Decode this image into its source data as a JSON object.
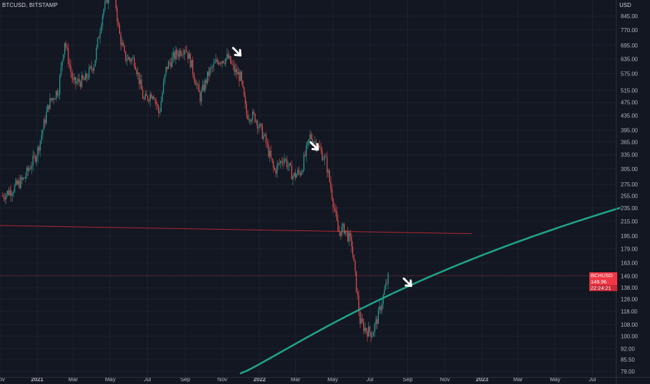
{
  "header": {
    "symbol": "BTCUSD, BITSTAMP",
    "currency": "USD"
  },
  "price_tag": {
    "label": "BCHUSD",
    "value": "149.96",
    "countdown": "22:24:21"
  },
  "colors": {
    "background": "#131722",
    "up": "#26a69a",
    "down": "#ef5350",
    "trendline": "#1fa38a",
    "axis_text": "#b2b5be",
    "horizontal_line": "#b22833",
    "arrows": "#ffffff"
  },
  "chart_data": {
    "type": "candlestick",
    "y_scale": "log",
    "y_ticks": [
      "845.00",
      "770.00",
      "695.00",
      "635.00",
      "575.00",
      "515.00",
      "475.00",
      "435.00",
      "395.00",
      "365.00",
      "335.00",
      "305.00",
      "275.00",
      "255.00",
      "235.00",
      "215.00",
      "195.00",
      "179.00",
      "163.00",
      "149.00",
      "138.00",
      "128.00",
      "118.00",
      "108.00",
      "100.00",
      "92.00",
      "85.50",
      "79.00"
    ],
    "x_ticks": [
      "Nov",
      "2021",
      "Mar",
      "May",
      "Jul",
      "Sep",
      "Nov",
      "2022",
      "Mar",
      "May",
      "Jul",
      "Sep",
      "Nov",
      "2023",
      "Mar",
      "May",
      "Jul"
    ],
    "x_tick_dates": [
      "2020-11-01",
      "2021-01-01",
      "2021-03-01",
      "2021-05-01",
      "2021-07-01",
      "2021-09-01",
      "2021-11-01",
      "2022-01-01",
      "2022-03-01",
      "2022-05-01",
      "2022-07-01",
      "2022-09-01",
      "2022-11-01",
      "2023-01-01",
      "2023-03-01",
      "2023-05-01",
      "2023-07-01"
    ],
    "close_path": [
      [
        "2020-11-05",
        255
      ],
      [
        "2020-11-20",
        265
      ],
      [
        "2020-12-10",
        285
      ],
      [
        "2021-01-01",
        340
      ],
      [
        "2021-01-20",
        470
      ],
      [
        "2021-02-05",
        520
      ],
      [
        "2021-02-15",
        720
      ],
      [
        "2021-03-01",
        540
      ],
      [
        "2021-03-20",
        550
      ],
      [
        "2021-04-05",
        620
      ],
      [
        "2021-04-18",
        860
      ],
      [
        "2021-05-01",
        1010
      ],
      [
        "2021-05-05",
        1100
      ],
      [
        "2021-05-15",
        760
      ],
      [
        "2021-05-25",
        640
      ],
      [
        "2021-06-10",
        630
      ],
      [
        "2021-06-25",
        480
      ],
      [
        "2021-07-10",
        510
      ],
      [
        "2021-07-20",
        440
      ],
      [
        "2021-08-01",
        600
      ],
      [
        "2021-08-15",
        650
      ],
      [
        "2021-09-01",
        690
      ],
      [
        "2021-09-10",
        620
      ],
      [
        "2021-09-25",
        490
      ],
      [
        "2021-10-10",
        580
      ],
      [
        "2021-10-25",
        630
      ],
      [
        "2021-11-10",
        640
      ],
      [
        "2021-11-20",
        590
      ],
      [
        "2021-12-01",
        560
      ],
      [
        "2021-12-10",
        440
      ],
      [
        "2021-12-25",
        430
      ],
      [
        "2022-01-10",
        370
      ],
      [
        "2022-01-25",
        300
      ],
      [
        "2022-02-10",
        330
      ],
      [
        "2022-02-25",
        290
      ],
      [
        "2022-03-10",
        300
      ],
      [
        "2022-03-25",
        380
      ],
      [
        "2022-04-05",
        360
      ],
      [
        "2022-04-20",
        320
      ],
      [
        "2022-05-01",
        250
      ],
      [
        "2022-05-10",
        200
      ],
      [
        "2022-05-20",
        205
      ],
      [
        "2022-06-01",
        185
      ],
      [
        "2022-06-15",
        110
      ],
      [
        "2022-06-25",
        104
      ],
      [
        "2022-07-05",
        102
      ],
      [
        "2022-07-15",
        115
      ],
      [
        "2022-07-25",
        135
      ],
      [
        "2022-08-01",
        149.96
      ]
    ],
    "horizontal_line": {
      "price": 209,
      "end_price": 198,
      "from": "2020-11-01",
      "to": "2022-12-15"
    },
    "support_curve": {
      "from": [
        "2021-12-01",
        78
      ],
      "to": [
        "2023-08-15",
        235
      ]
    },
    "annotations": [
      "down-arrow",
      "down-arrow",
      "down-arrow"
    ],
    "arrow_points": [
      [
        "2021-11-25",
        665
      ],
      [
        "2022-04-01",
        355
      ],
      [
        "2022-09-01",
        143
      ]
    ],
    "last_price": 149.96
  }
}
